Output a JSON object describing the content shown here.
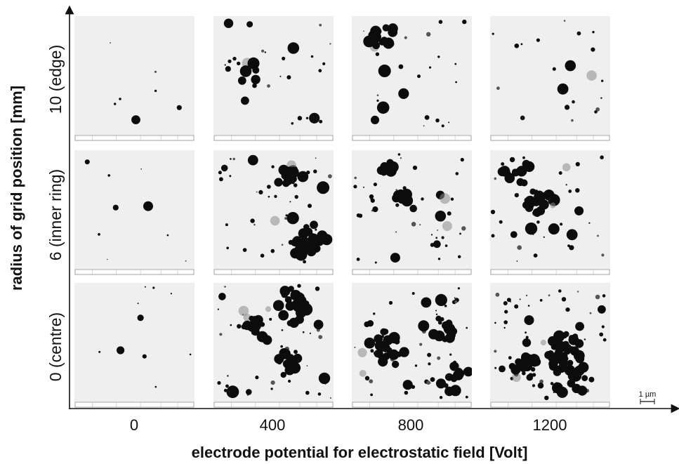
{
  "figure": {
    "x_axis_title": "electrode potential for electrostatic field [Volt]",
    "y_axis_title": "radius of grid position [mm]",
    "columns": [
      "0",
      "400",
      "800",
      "1200"
    ],
    "rows": [
      "10 (edge)",
      "6 (inner ring)",
      "0 (centre)"
    ],
    "scale_bar": "1 µm"
  },
  "colors": {
    "panel_background": "#efefef",
    "particle": "#0c0c0c",
    "axis": "#111111"
  }
}
